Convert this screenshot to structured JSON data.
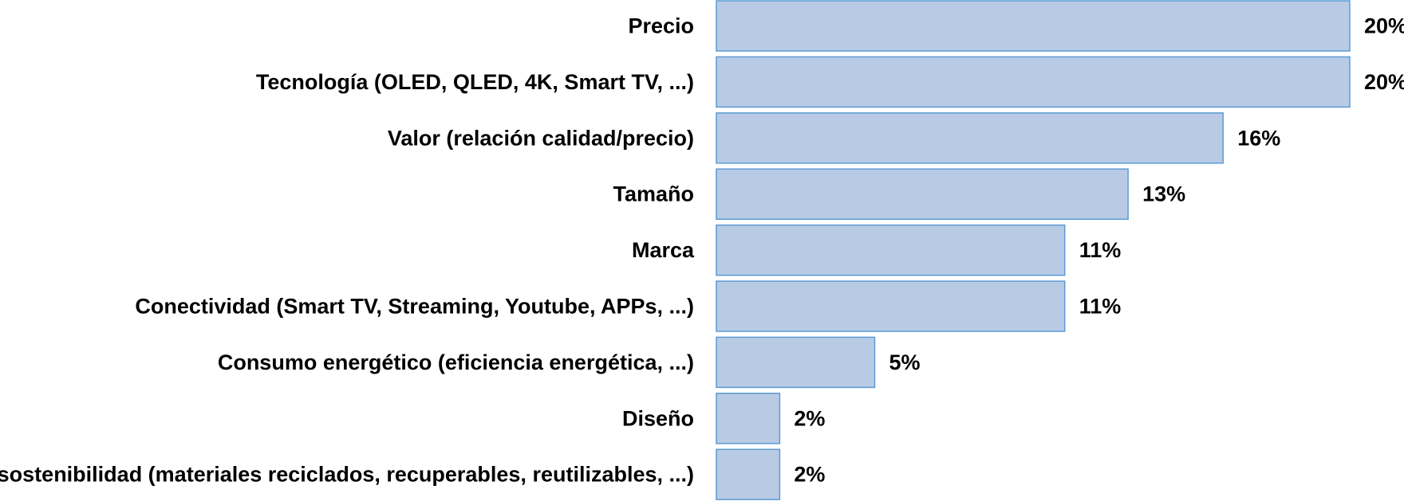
{
  "chart_data": {
    "type": "bar",
    "orientation": "horizontal",
    "categories": [
      "Precio",
      "Tecnología (OLED, QLED, 4K, Smart TV, ...)",
      "Valor (relación calidad/precio)",
      "Tamaño",
      "Marca",
      "Conectividad (Smart TV, Streaming, Youtube, APPs, ...)",
      "Consumo energético (eficiencia energética, ...)",
      "Diseño",
      "Ecosostenibilidad (materiales reciclados, recuperables, reutilizables, ...)"
    ],
    "values": [
      20,
      20,
      16,
      13,
      11,
      11,
      5,
      2,
      2
    ],
    "value_labels": [
      "20%",
      "20%",
      "16%",
      "13%",
      "11%",
      "11%",
      "5%",
      "2%",
      "2%"
    ],
    "title": "",
    "xlabel": "",
    "ylabel": "",
    "xlim": [
      0,
      20
    ],
    "grid": false,
    "legend": "none",
    "colors": {
      "bar_fill": "#b9cbe4",
      "bar_stroke": "#5b9bd5",
      "text": "#000000"
    }
  }
}
